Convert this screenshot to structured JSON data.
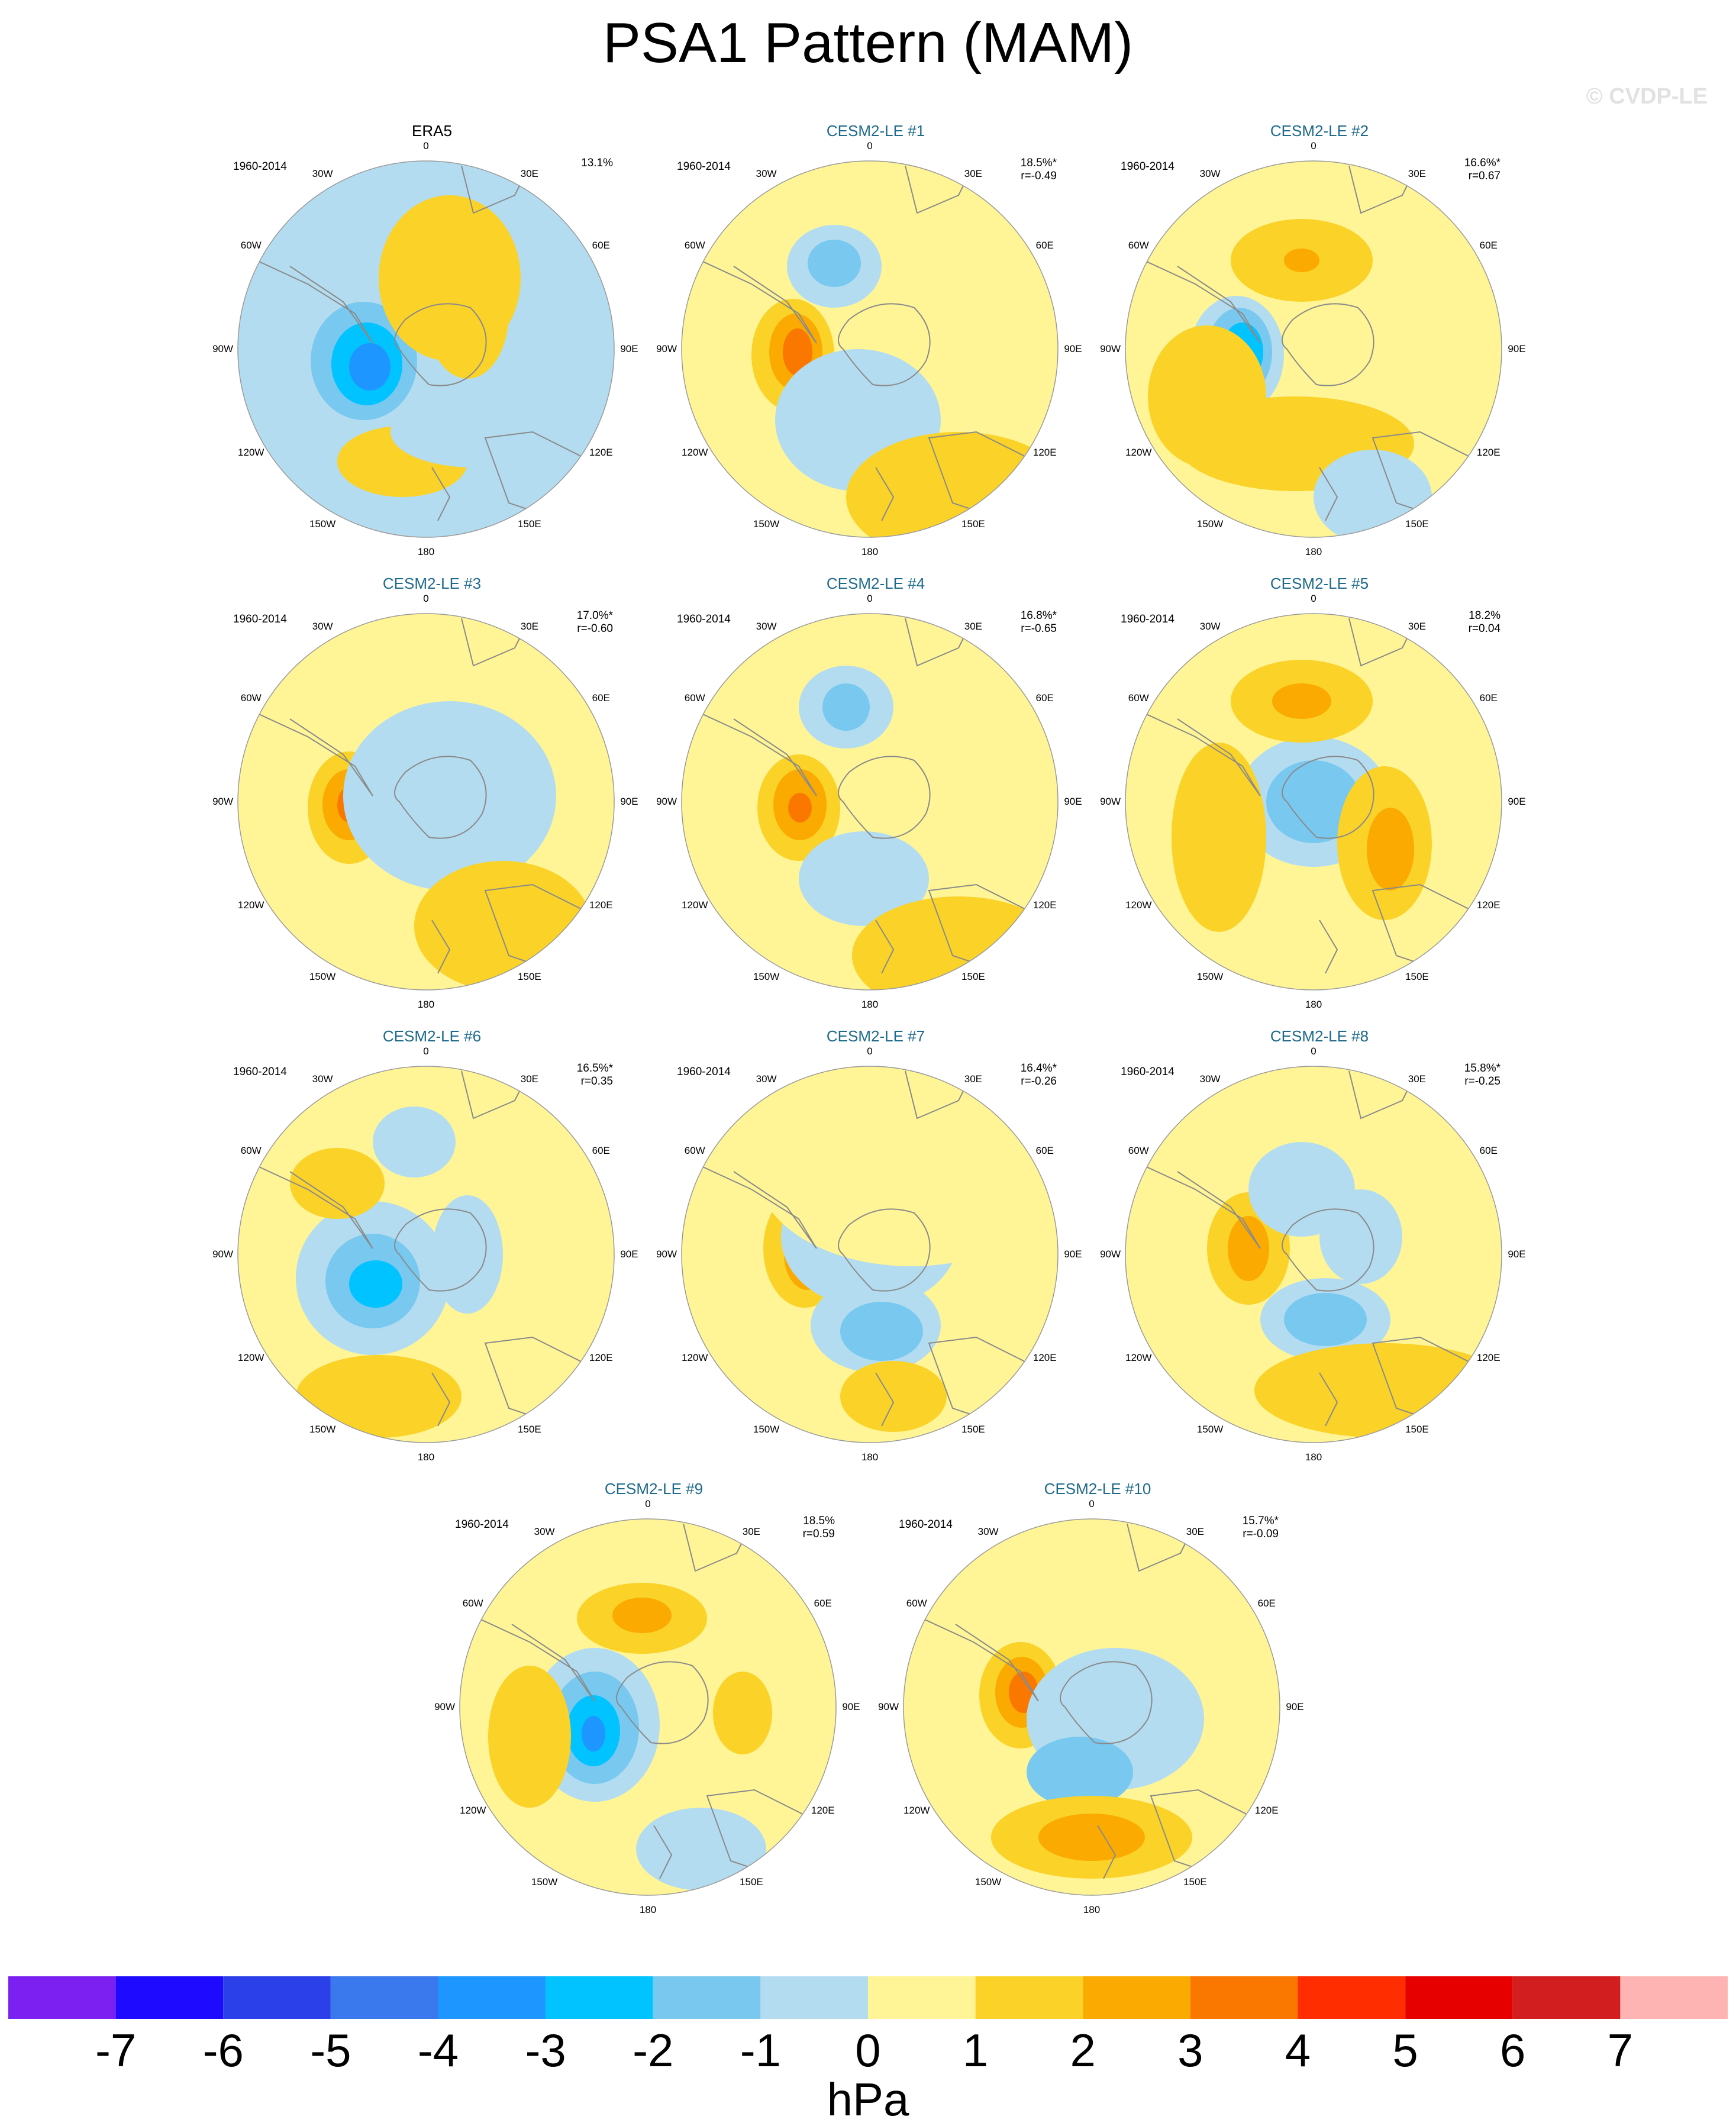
{
  "title": "PSA1 Pattern (MAM)",
  "watermark": "© CVDP-LE",
  "period": "1960-2014",
  "lon_labels": {
    "n": "0",
    "e30": "30E",
    "e60": "60E",
    "e90": "90E",
    "e120": "120E",
    "e150": "150E",
    "s": "180",
    "w150": "150W",
    "w120": "120W",
    "w90": "90W",
    "w60": "60W",
    "w30": "30W"
  },
  "panels": [
    {
      "title": "ERA5",
      "kind": "obs",
      "pct": "13.1%",
      "r": ""
    },
    {
      "title": "CESM2-LE #1",
      "kind": "mod",
      "pct": "18.5%*",
      "r": "r=-0.49"
    },
    {
      "title": "CESM2-LE #2",
      "kind": "mod",
      "pct": "16.6%*",
      "r": "r=0.67"
    },
    {
      "title": "CESM2-LE #3",
      "kind": "mod",
      "pct": "17.0%*",
      "r": "r=-0.60"
    },
    {
      "title": "CESM2-LE #4",
      "kind": "mod",
      "pct": "16.8%*",
      "r": "r=-0.65"
    },
    {
      "title": "CESM2-LE #5",
      "kind": "mod",
      "pct": "18.2%",
      "r": "r=0.04"
    },
    {
      "title": "CESM2-LE #6",
      "kind": "mod",
      "pct": "16.5%*",
      "r": "r=0.35"
    },
    {
      "title": "CESM2-LE #7",
      "kind": "mod",
      "pct": "16.4%*",
      "r": "r=-0.26"
    },
    {
      "title": "CESM2-LE #8",
      "kind": "mod",
      "pct": "15.8%*",
      "r": "r=-0.25"
    },
    {
      "title": "CESM2-LE #9",
      "kind": "mod",
      "pct": "18.5%",
      "r": "r=0.59"
    },
    {
      "title": "CESM2-LE #10",
      "kind": "mod",
      "pct": "15.7%*",
      "r": "r=-0.09"
    }
  ],
  "colorbar": {
    "units": "hPa",
    "ticks": [
      "-7",
      "-6",
      "-5",
      "-4",
      "-3",
      "-2",
      "-1",
      "0",
      "1",
      "2",
      "3",
      "4",
      "5",
      "6",
      "7"
    ],
    "colors": [
      "#7b20f0",
      "#1e0aff",
      "#2b40e8",
      "#3a78ee",
      "#1e96ff",
      "#00c3ff",
      "#78c8f0",
      "#b4dcf0",
      "#fff596",
      "#fad228",
      "#faaa00",
      "#fa7800",
      "#ff2d00",
      "#e60000",
      "#d21e1e",
      "#ffb4b4"
    ]
  }
}
